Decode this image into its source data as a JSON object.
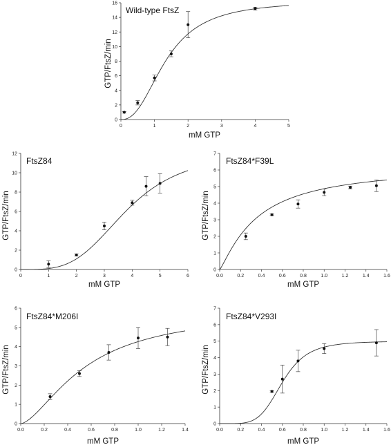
{
  "chart_data": [
    {
      "type": "scatter",
      "title": "Wild-type FtsZ",
      "xlabel": "mM GTP",
      "ylabel": "GTP/FtsZ/min",
      "xlim": [
        0,
        5
      ],
      "ylim": [
        0,
        16
      ],
      "xticks": [
        0,
        1,
        2,
        3,
        4,
        5
      ],
      "yticks": [
        0,
        2,
        4,
        6,
        8,
        10,
        12,
        14,
        16
      ],
      "points": [
        {
          "x": 0.1,
          "y": 1.0,
          "err": 0.1
        },
        {
          "x": 0.5,
          "y": 2.3,
          "err": 0.3
        },
        {
          "x": 1.0,
          "y": 5.7,
          "err": 0.4
        },
        {
          "x": 1.5,
          "y": 9.0,
          "err": 0.4
        },
        {
          "x": 2.0,
          "y": 13.0,
          "err": 1.8
        },
        {
          "x": 4.0,
          "y": 15.2,
          "err": 0.2
        }
      ],
      "fit": {
        "model": "hill",
        "vmax": 16.3,
        "k": 1.35,
        "n": 2.4
      }
    },
    {
      "type": "scatter",
      "title": "FtsZ84",
      "xlabel": "mM GTP",
      "ylabel": "GTP/FtsZ/min",
      "xlim": [
        0,
        6
      ],
      "ylim": [
        0,
        12
      ],
      "xticks": [
        0,
        1,
        2,
        3,
        4,
        5,
        6
      ],
      "yticks": [
        0,
        2,
        4,
        6,
        8,
        10,
        12
      ],
      "points": [
        {
          "x": 1.0,
          "y": 0.55,
          "err": 0.35
        },
        {
          "x": 2.0,
          "y": 1.5,
          "err": 0.1
        },
        {
          "x": 3.0,
          "y": 4.5,
          "err": 0.4
        },
        {
          "x": 4.0,
          "y": 6.9,
          "err": 0.25
        },
        {
          "x": 4.5,
          "y": 8.6,
          "err": 1.0
        },
        {
          "x": 5.0,
          "y": 8.9,
          "err": 1.0
        }
      ],
      "fit": {
        "model": "hill",
        "vmax": 12.2,
        "k": 3.8,
        "n": 3.6
      }
    },
    {
      "type": "scatter",
      "title": "FtsZ84*F39L",
      "xlabel": "mM GTP",
      "ylabel": "GTP/FtsZ/min",
      "xlim": [
        0,
        1.6
      ],
      "ylim": [
        0,
        7
      ],
      "xticks": [
        0.0,
        0.2,
        0.4,
        0.6,
        0.8,
        1.0,
        1.2,
        1.4,
        1.6
      ],
      "yticks": [
        0,
        1,
        2,
        3,
        4,
        5,
        6,
        7
      ],
      "points": [
        {
          "x": 0.25,
          "y": 2.0,
          "err": 0.2
        },
        {
          "x": 0.5,
          "y": 3.3,
          "err": 0.05
        },
        {
          "x": 0.75,
          "y": 3.95,
          "err": 0.25
        },
        {
          "x": 1.0,
          "y": 4.65,
          "err": 0.2
        },
        {
          "x": 1.25,
          "y": 4.95,
          "err": 0.08
        },
        {
          "x": 1.5,
          "y": 5.05,
          "err": 0.35
        }
      ],
      "fit": {
        "model": "hill",
        "vmax": 6.3,
        "k": 0.36,
        "n": 1.2
      }
    },
    {
      "type": "scatter",
      "title": "FtsZ84*M206I",
      "xlabel": "mM GTP",
      "ylabel": "GTP/FtsZ/min",
      "xlim": [
        0,
        1.4
      ],
      "ylim": [
        0,
        6
      ],
      "xticks": [
        0.0,
        0.2,
        0.4,
        0.6,
        0.8,
        1.0,
        1.2,
        1.4
      ],
      "yticks": [
        0,
        1,
        2,
        3,
        4,
        5,
        6
      ],
      "points": [
        {
          "x": 0.25,
          "y": 1.4,
          "err": 0.15
        },
        {
          "x": 0.5,
          "y": 2.6,
          "err": 0.15
        },
        {
          "x": 0.75,
          "y": 3.7,
          "err": 0.4
        },
        {
          "x": 1.0,
          "y": 4.45,
          "err": 0.55
        },
        {
          "x": 1.25,
          "y": 4.5,
          "err": 0.45
        }
      ],
      "fit": {
        "model": "hill",
        "vmax": 5.9,
        "k": 0.55,
        "n": 1.6
      }
    },
    {
      "type": "scatter",
      "title": "FtsZ84*V293I",
      "xlabel": "mM GTP",
      "ylabel": "GTP/FtsZ/min",
      "xlim": [
        0,
        1.6
      ],
      "ylim": [
        0,
        7
      ],
      "xticks": [
        0.0,
        0.2,
        0.4,
        0.6,
        0.8,
        1.0,
        1.2,
        1.4,
        1.6
      ],
      "yticks": [
        0,
        1,
        2,
        3,
        4,
        5,
        6,
        7
      ],
      "points": [
        {
          "x": 0.5,
          "y": 1.95,
          "err": 0.05
        },
        {
          "x": 0.6,
          "y": 2.7,
          "err": 0.85
        },
        {
          "x": 0.75,
          "y": 3.8,
          "err": 0.65
        },
        {
          "x": 1.0,
          "y": 4.55,
          "err": 0.3
        },
        {
          "x": 1.5,
          "y": 4.9,
          "err": 0.8
        }
      ],
      "fit": {
        "model": "hill",
        "vmax": 5.0,
        "k": 0.6,
        "n": 5.0
      }
    }
  ]
}
